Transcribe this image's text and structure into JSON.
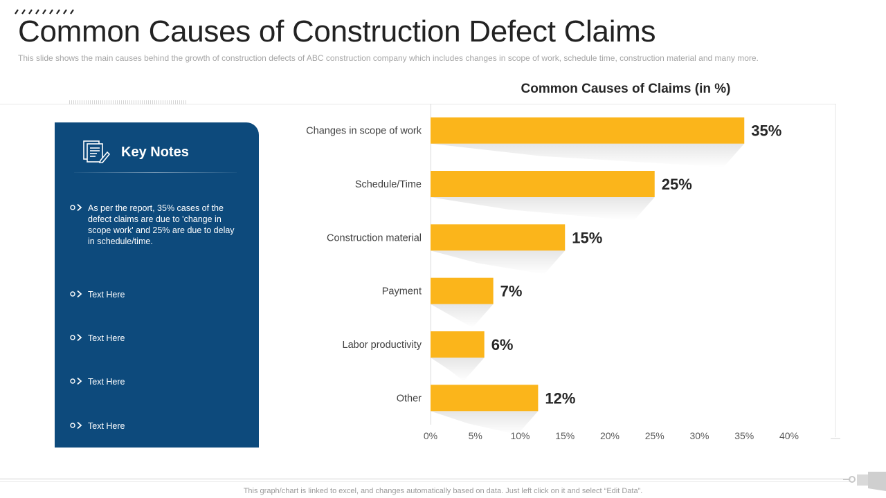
{
  "header": {
    "title": "Common Causes of Construction Defect Claims",
    "subtitle": "This slide shows the main causes behind the growth of construction defects of ABC construction company which includes changes in scope of work, schedule time, construction material and many more."
  },
  "key_notes": {
    "title": "Key Notes",
    "items": [
      "As per the report, 35% cases of the defect claims are due to 'change in scope work' and 25% are due to delay in schedule/time.",
      "Text Here",
      "Text Here",
      "Text Here",
      "Text Here"
    ]
  },
  "footer": {
    "note": "This graph/chart is linked to excel,  and changes automatically based on data. Just left click on it and select “Edit Data”."
  },
  "colors": {
    "bar": "#fbb51b",
    "panel": "#0d4a7c",
    "label_text": "#404040",
    "value_text": "#262626"
  },
  "chart_data": {
    "type": "bar",
    "orientation": "horizontal",
    "title": "Common Causes of Claims (in %)",
    "categories": [
      "Changes in scope of work",
      "Schedule/Time",
      "Construction material",
      "Payment",
      "Labor productivity",
      "Other"
    ],
    "values": [
      35,
      25,
      15,
      7,
      6,
      12
    ],
    "data_labels": [
      "35%",
      "25%",
      "15%",
      "7%",
      "6%",
      "12%"
    ],
    "xlim": [
      0,
      40
    ],
    "x_ticks": [
      0,
      5,
      10,
      15,
      20,
      25,
      30,
      35,
      40
    ],
    "x_tick_labels": [
      "0%",
      "5%",
      "10%",
      "15%",
      "20%",
      "25%",
      "30%",
      "35%",
      "40%"
    ],
    "xlabel": "",
    "ylabel": "",
    "grid": false,
    "legend": "none"
  }
}
